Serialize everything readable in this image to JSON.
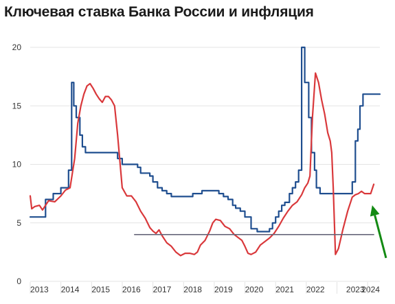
{
  "chart_data": {
    "type": "line",
    "title": "Ключевая ставка Банка России и инфляция",
    "xlabel": "",
    "ylabel": "",
    "ylim": [
      0,
      20
    ],
    "yticks": [
      0,
      5,
      10,
      15,
      20
    ],
    "xlim": [
      2013.0,
      2024.4
    ],
    "xtick_labels": [
      {
        "label": "2013",
        "at": 2013.3
      },
      {
        "label": "2014",
        "at": 2014.3
      },
      {
        "label": "2015",
        "at": 2015.3
      },
      {
        "label": "2016",
        "at": 2016.3
      },
      {
        "label": "2017",
        "at": 2017.3
      },
      {
        "label": "2018",
        "at": 2018.3
      },
      {
        "label": "2019",
        "at": 2019.3
      },
      {
        "label": "2020",
        "at": 2020.3
      },
      {
        "label": "2021",
        "at": 2021.3
      },
      {
        "label": "2022",
        "at": 2022.3
      },
      {
        "label": "2023",
        "at": 2023.6
      },
      {
        "label": "2024",
        "at": 2024.1
      }
    ],
    "grid": "horizontal",
    "legend": "none",
    "series": [
      {
        "kind": "key-rate",
        "color": "#1f4e8f",
        "step": true,
        "x": [
          2013.0,
          2013.5,
          2013.75,
          2014.0,
          2014.25,
          2014.35,
          2014.42,
          2014.5,
          2014.62,
          2014.7,
          2014.8,
          2014.92,
          2015.1,
          2015.3,
          2015.5,
          2015.7,
          2015.85,
          2016.0,
          2016.2,
          2016.5,
          2016.6,
          2016.9,
          2017.0,
          2017.15,
          2017.3,
          2017.45,
          2017.6,
          2017.7,
          2017.85,
          2018.0,
          2018.3,
          2018.6,
          2018.75,
          2019.0,
          2019.15,
          2019.3,
          2019.45,
          2019.6,
          2019.7,
          2019.85,
          2020.0,
          2020.2,
          2020.4,
          2020.7,
          2020.8,
          2020.9,
          2021.0,
          2021.1,
          2021.2,
          2021.3,
          2021.45,
          2021.55,
          2021.65,
          2021.75,
          2021.85,
          2021.95,
          2022.08,
          2022.17,
          2022.27,
          2022.33,
          2022.45,
          2022.55,
          2022.65,
          2022.75,
          2023.5,
          2023.6,
          2023.68,
          2023.75,
          2023.85,
          2023.95,
          2024.4
        ],
        "values": [
          5.5,
          7.0,
          7.5,
          8.0,
          9.5,
          17.0,
          15.0,
          14.0,
          12.5,
          11.5,
          11.0,
          11.0,
          11.0,
          11.0,
          11.0,
          11.0,
          10.5,
          10.0,
          10.0,
          9.75,
          9.25,
          9.0,
          8.5,
          8.0,
          7.75,
          7.5,
          7.25,
          7.25,
          7.25,
          7.25,
          7.5,
          7.75,
          7.75,
          7.75,
          7.5,
          7.25,
          7.0,
          6.5,
          6.25,
          6.0,
          5.5,
          4.5,
          4.25,
          4.25,
          4.5,
          5.0,
          5.5,
          6.0,
          6.5,
          6.75,
          7.5,
          8.0,
          8.5,
          9.5,
          20.0,
          17.0,
          14.0,
          11.0,
          9.5,
          8.0,
          7.5,
          7.5,
          7.5,
          7.5,
          8.5,
          12.0,
          13.0,
          15.0,
          16.0,
          16.0,
          16.0
        ]
      },
      {
        "kind": "inflation",
        "color": "#d9383b",
        "step": false,
        "x": [
          2013.0,
          2013.05,
          2013.15,
          2013.3,
          2013.4,
          2013.5,
          2013.6,
          2013.8,
          2014.0,
          2014.15,
          2014.3,
          2014.45,
          2014.55,
          2014.65,
          2014.75,
          2014.85,
          2014.95,
          2015.05,
          2015.15,
          2015.25,
          2015.35,
          2015.45,
          2015.55,
          2015.65,
          2015.75,
          2015.85,
          2016.0,
          2016.15,
          2016.3,
          2016.45,
          2016.6,
          2016.75,
          2016.9,
          2017.0,
          2017.1,
          2017.2,
          2017.3,
          2017.45,
          2017.6,
          2017.75,
          2017.9,
          2018.05,
          2018.2,
          2018.35,
          2018.45,
          2018.55,
          2018.7,
          2018.85,
          2018.95,
          2019.05,
          2019.2,
          2019.35,
          2019.5,
          2019.65,
          2019.8,
          2019.9,
          2020.0,
          2020.1,
          2020.2,
          2020.35,
          2020.5,
          2020.65,
          2020.8,
          2020.95,
          2021.1,
          2021.25,
          2021.4,
          2021.55,
          2021.7,
          2021.85,
          2021.95,
          2022.05,
          2022.12,
          2022.2,
          2022.3,
          2022.4,
          2022.5,
          2022.6,
          2022.7,
          2022.78,
          2022.83,
          2022.88,
          2022.95,
          2023.05,
          2023.2,
          2023.35,
          2023.5,
          2023.6,
          2023.7,
          2023.8,
          2023.9,
          2024.0,
          2024.1,
          2024.2
        ],
        "values": [
          7.3,
          6.2,
          6.4,
          6.5,
          6.1,
          6.5,
          6.9,
          6.8,
          7.3,
          7.8,
          8.0,
          10.5,
          13.5,
          15.0,
          16.0,
          16.7,
          16.9,
          16.5,
          16.0,
          15.6,
          15.3,
          15.8,
          15.8,
          15.5,
          15.0,
          12.5,
          8.0,
          7.3,
          7.3,
          6.8,
          6.0,
          5.4,
          4.6,
          4.3,
          4.1,
          4.4,
          3.9,
          3.3,
          3.0,
          2.5,
          2.2,
          2.4,
          2.4,
          2.3,
          2.5,
          3.1,
          3.5,
          4.3,
          5.0,
          5.3,
          5.2,
          4.7,
          4.5,
          4.0,
          3.7,
          3.5,
          3.0,
          2.4,
          2.3,
          2.5,
          3.1,
          3.4,
          3.7,
          4.1,
          4.7,
          5.4,
          6.0,
          6.5,
          6.8,
          7.4,
          8.0,
          8.4,
          9.0,
          14.0,
          17.8,
          17.0,
          15.5,
          14.3,
          12.7,
          12.0,
          11.0,
          8.0,
          2.3,
          2.8,
          4.5,
          6.0,
          7.2,
          7.4,
          7.5,
          7.7,
          7.5,
          7.5,
          7.5,
          8.3
        ]
      },
      {
        "kind": "reference-line",
        "color": "#66667a",
        "step": false,
        "x": [
          2016.4,
          2024.2
        ],
        "values": [
          4.0,
          4.0
        ]
      }
    ],
    "annotations": [
      {
        "type": "arrow",
        "color": "#138a13",
        "x_from": 2024.6,
        "y_from": 2.0,
        "x_to": 2024.15,
        "y_to": 6.5
      }
    ]
  }
}
